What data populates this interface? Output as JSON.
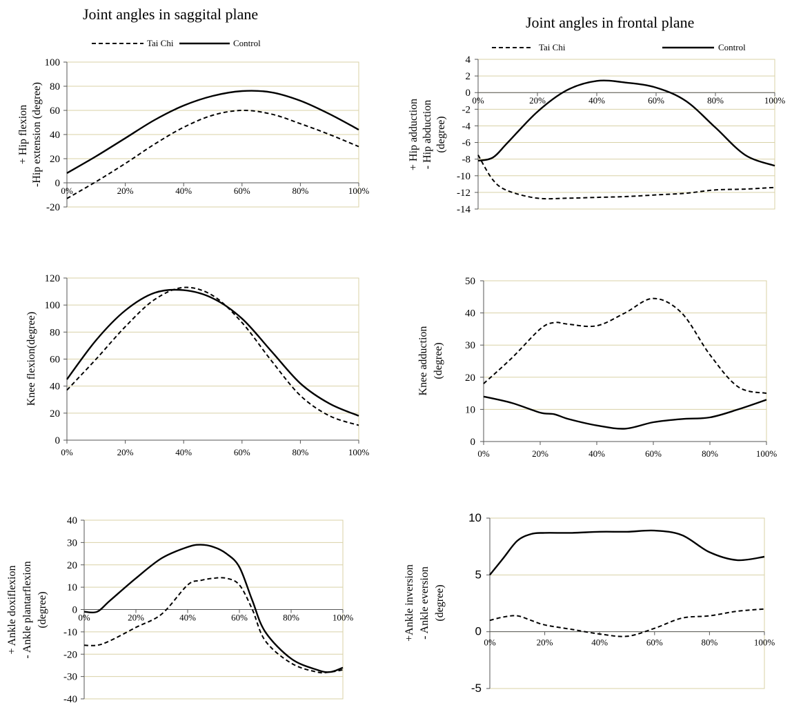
{
  "titles": {
    "sagittal": "Joint angles in saggital plane",
    "frontal": "Joint angles in frontal plane"
  },
  "legend": {
    "taichi": "Tai Chi",
    "control": "Control"
  },
  "chart_data": [
    {
      "id": "hip-sagittal",
      "type": "line",
      "ylabel": [
        "+ Hip flexion",
        "-Hip extension  (degree)"
      ],
      "ylim": [
        -20,
        100
      ],
      "yticks": [
        -20,
        0,
        20,
        40,
        60,
        80,
        100
      ],
      "xtick_labels": [
        "0%",
        "20%",
        "40%",
        "60%",
        "80%",
        "100%"
      ],
      "x": [
        0,
        10,
        20,
        30,
        40,
        50,
        60,
        70,
        80,
        90,
        100
      ],
      "series": [
        {
          "name": "Tai Chi",
          "values": [
            -13,
            1,
            16,
            32,
            46,
            56,
            60,
            57,
            49,
            40,
            30
          ]
        },
        {
          "name": "Control",
          "values": [
            8,
            22,
            37,
            52,
            64,
            72,
            76,
            75,
            68,
            57,
            44
          ]
        }
      ]
    },
    {
      "id": "knee-sagittal",
      "type": "line",
      "ylabel": [
        "Knee  flexion(degree)"
      ],
      "ylim": [
        0,
        120
      ],
      "yticks": [
        0,
        20,
        40,
        60,
        80,
        100,
        120
      ],
      "xtick_labels": [
        "0%",
        "20%",
        "40%",
        "60%",
        "80%",
        "100%"
      ],
      "x": [
        0,
        10,
        20,
        30,
        40,
        50,
        60,
        70,
        80,
        90,
        100
      ],
      "series": [
        {
          "name": "Tai Chi",
          "values": [
            37,
            60,
            84,
            104,
            113,
            107,
            87,
            59,
            33,
            18,
            11
          ]
        },
        {
          "name": "Control",
          "values": [
            45,
            74,
            96,
            109,
            111,
            105,
            90,
            66,
            42,
            27,
            18
          ]
        }
      ]
    },
    {
      "id": "ankle-sagittal",
      "type": "line",
      "ylabel": [
        "+ Ankle doxiflexion",
        "- Ankle plantarflexion",
        "(degree)"
      ],
      "ylim": [
        -40,
        40
      ],
      "yticks": [
        -40,
        -30,
        -20,
        -10,
        0,
        10,
        20,
        30,
        40
      ],
      "xtick_labels": [
        "0%",
        "20%",
        "40%",
        "60%",
        "80%",
        "100%"
      ],
      "x": [
        0,
        5,
        10,
        20,
        30,
        40,
        45,
        50,
        55,
        60,
        65,
        70,
        80,
        90,
        95,
        100
      ],
      "series": [
        {
          "name": "Tai Chi",
          "values": [
            -16,
            -16,
            -14,
            -8,
            -2,
            11,
            13,
            14,
            14,
            11,
            0,
            -14,
            -24,
            -28,
            -28,
            -27
          ]
        },
        {
          "name": "Control",
          "values": [
            -1,
            -1,
            4,
            14,
            23,
            28,
            29,
            28,
            25,
            19,
            4,
            -10,
            -22,
            -27,
            -28,
            -26
          ]
        }
      ]
    },
    {
      "id": "hip-frontal",
      "type": "line",
      "ylabel": [
        "+ Hip adduction",
        "- Hip abduction",
        "(degree)"
      ],
      "ylim": [
        -14,
        4
      ],
      "yticks": [
        -14,
        -12,
        -10,
        -8,
        -6,
        -4,
        -2,
        0,
        2,
        4
      ],
      "xtick_labels": [
        "0%",
        "20%",
        "40%",
        "60%",
        "80%",
        "100%"
      ],
      "x": [
        0,
        5,
        10,
        20,
        30,
        40,
        50,
        60,
        70,
        80,
        90,
        100
      ],
      "series": [
        {
          "name": "Tai Chi",
          "values": [
            -7.5,
            -10.5,
            -11.8,
            -12.7,
            -12.7,
            -12.6,
            -12.5,
            -12.3,
            -12.1,
            -11.7,
            -11.6,
            -11.4
          ]
        },
        {
          "name": "Control",
          "values": [
            -8.2,
            -7.8,
            -6,
            -2.3,
            0.3,
            1.4,
            1.2,
            0.6,
            -1,
            -4.2,
            -7.5,
            -8.8
          ]
        }
      ]
    },
    {
      "id": "knee-frontal",
      "type": "line",
      "ylabel": [
        "Knee adduction",
        "(degree)"
      ],
      "ylim": [
        0,
        50
      ],
      "yticks": [
        0,
        10,
        20,
        30,
        40,
        50
      ],
      "xtick_labels": [
        "0%",
        "20%",
        "40%",
        "60%",
        "80%",
        "100%"
      ],
      "x": [
        0,
        10,
        20,
        25,
        30,
        40,
        50,
        60,
        70,
        80,
        90,
        100
      ],
      "series": [
        {
          "name": "Tai Chi",
          "values": [
            18,
            26,
            35,
            37,
            36.5,
            36,
            40,
            44.5,
            40,
            27,
            17,
            15
          ]
        },
        {
          "name": "Control",
          "values": [
            14,
            12,
            9,
            8.5,
            7,
            5,
            4,
            6,
            7,
            7.5,
            10,
            13
          ]
        }
      ]
    },
    {
      "id": "ankle-frontal",
      "type": "line",
      "ylabel": [
        "+Ankle inversion",
        "- Ankle eversion",
        "(degree)"
      ],
      "ylim": [
        -5,
        10
      ],
      "yticks": [
        -5,
        0,
        5,
        10
      ],
      "xtick_labels": [
        "0%",
        "20%",
        "40%",
        "60%",
        "80%",
        "100%"
      ],
      "x": [
        0,
        5,
        10,
        15,
        20,
        30,
        40,
        50,
        60,
        70,
        80,
        90,
        100
      ],
      "series": [
        {
          "name": "Tai Chi",
          "values": [
            1,
            1.3,
            1.4,
            1,
            0.6,
            0.2,
            -0.2,
            -0.4,
            0.3,
            1.2,
            1.4,
            1.8,
            2
          ]
        },
        {
          "name": "Control",
          "values": [
            5,
            6.5,
            8,
            8.6,
            8.7,
            8.7,
            8.8,
            8.8,
            8.9,
            8.5,
            7,
            6.3,
            6.6
          ]
        }
      ]
    }
  ]
}
